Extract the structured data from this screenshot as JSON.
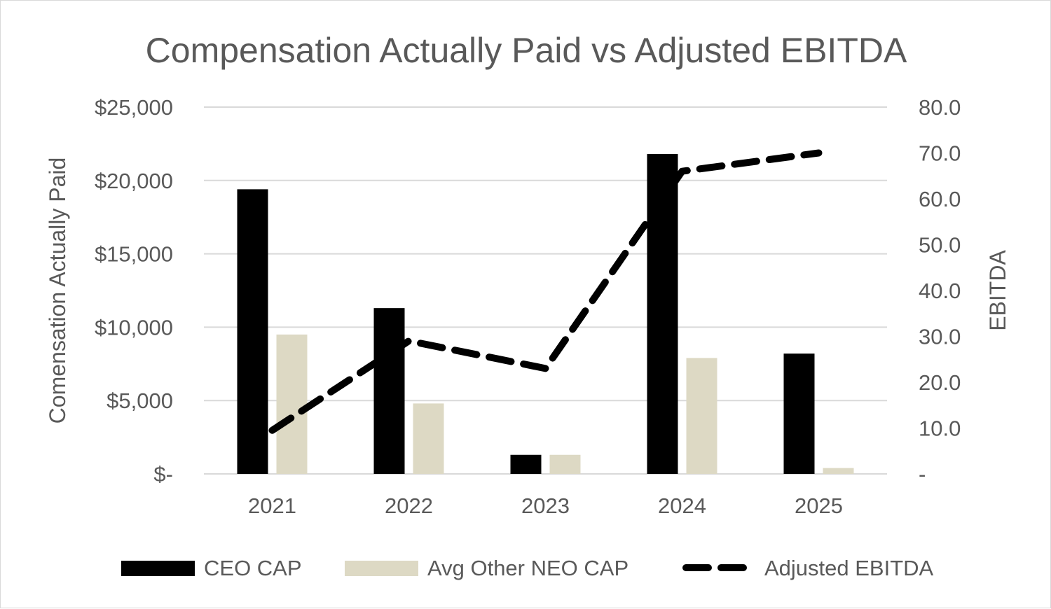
{
  "chart_data": {
    "type": "bar",
    "title": "Compensation Actually Paid vs Adjusted EBITDA",
    "categories": [
      "2021",
      "2022",
      "2023",
      "2024",
      "2025"
    ],
    "y_left_label": "Comensation Actually Paid",
    "y_right_label": "EBITDA",
    "y_left_ticks": [
      "$-",
      "$5,000",
      "$10,000",
      "$15,000",
      "$20,000",
      "$25,000"
    ],
    "y_right_ticks": [
      "-",
      "10.0",
      "20.0",
      "30.0",
      "40.0",
      "50.0",
      "60.0",
      "70.0",
      "80.0"
    ],
    "y_left_lim": [
      0,
      25000
    ],
    "y_right_lim": [
      0,
      80
    ],
    "grid": true,
    "legend_position": "bottom",
    "series": [
      {
        "name": "CEO CAP",
        "type": "bar",
        "axis": "left",
        "color": "#000000",
        "values": [
          19400,
          11300,
          1300,
          21800,
          8200
        ]
      },
      {
        "name": "Avg Other NEO CAP",
        "type": "bar",
        "axis": "left",
        "color": "#ddd9c4",
        "values": [
          9500,
          4800,
          1300,
          7900,
          400
        ]
      },
      {
        "name": "Adjusted EBITDA",
        "type": "line",
        "style": "dashed",
        "axis": "right",
        "color": "#000000",
        "values": [
          9.5,
          29,
          23,
          66,
          70
        ]
      }
    ]
  }
}
